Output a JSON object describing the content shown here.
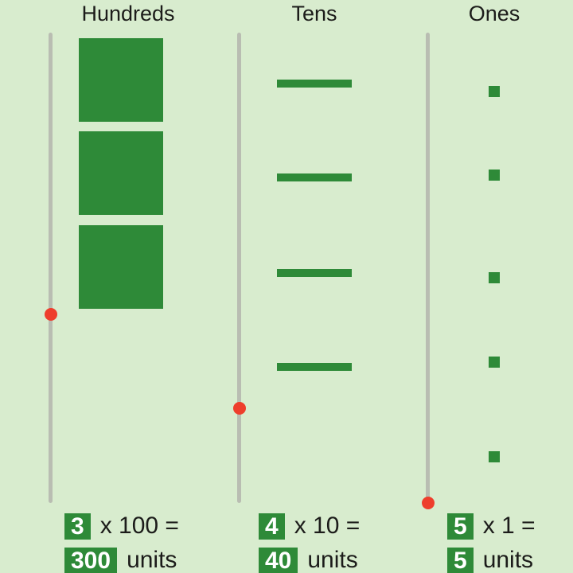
{
  "app": {
    "background_color": "#d8ecce",
    "block_color": "#2e8a38",
    "track_color": "#b9bdb2",
    "handle_color": "#ee3e2c",
    "text_color": "#1c1c1a"
  },
  "columns": [
    {
      "id": "hundreds",
      "header": "Hundreds",
      "block_count": 3,
      "slider_value": 3,
      "equation": {
        "count": "3",
        "expression": "x 100 =",
        "total": "300",
        "units": "units"
      }
    },
    {
      "id": "tens",
      "header": "Tens",
      "block_count": 4,
      "slider_value": 4,
      "equation": {
        "count": "4",
        "expression": "x 10 =",
        "total": "40",
        "units": "units"
      }
    },
    {
      "id": "ones",
      "header": "Ones",
      "block_count": 5,
      "slider_value": 5,
      "equation": {
        "count": "5",
        "expression": "x 1 =",
        "total": "5",
        "units": "units"
      }
    }
  ]
}
